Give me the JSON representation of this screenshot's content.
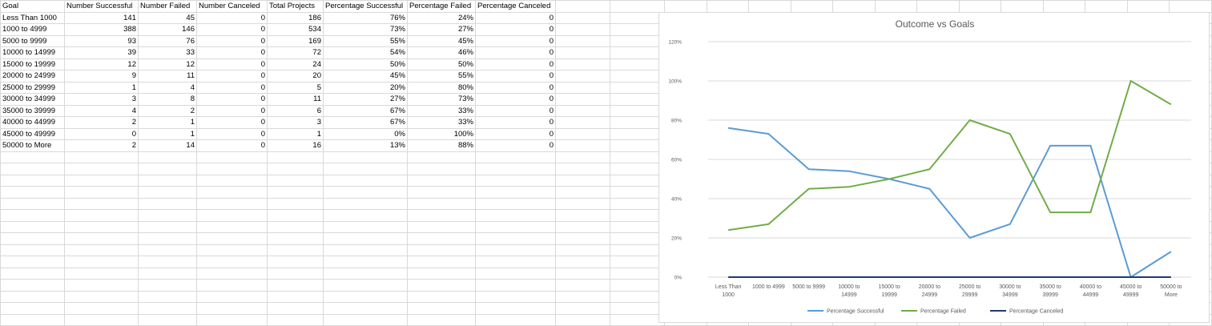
{
  "sheet": {
    "headers": [
      "Goal",
      "Number Successful",
      "Number Failed",
      "Number Canceled",
      "Total Projects",
      "Percentage Successful",
      "Percentage Failed",
      "Percentage Canceled"
    ],
    "rows": [
      [
        "Less Than 1000",
        "141",
        "45",
        "0",
        "186",
        "76%",
        "24%",
        "0"
      ],
      [
        "1000 to 4999",
        "388",
        "146",
        "0",
        "534",
        "73%",
        "27%",
        "0"
      ],
      [
        "5000 to 9999",
        "93",
        "76",
        "0",
        "169",
        "55%",
        "45%",
        "0"
      ],
      [
        "10000 to 14999",
        "39",
        "33",
        "0",
        "72",
        "54%",
        "46%",
        "0"
      ],
      [
        "15000 to 19999",
        "12",
        "12",
        "0",
        "24",
        "50%",
        "50%",
        "0"
      ],
      [
        "20000 to 24999",
        "9",
        "11",
        "0",
        "20",
        "45%",
        "55%",
        "0"
      ],
      [
        "25000 to 29999",
        "1",
        "4",
        "0",
        "5",
        "20%",
        "80%",
        "0"
      ],
      [
        "30000 to 34999",
        "3",
        "8",
        "0",
        "11",
        "27%",
        "73%",
        "0"
      ],
      [
        "35000 to 39999",
        "4",
        "2",
        "0",
        "6",
        "67%",
        "33%",
        "0"
      ],
      [
        "40000 to 44999",
        "2",
        "1",
        "0",
        "3",
        "67%",
        "33%",
        "0"
      ],
      [
        "45000 to 49999",
        "0",
        "1",
        "0",
        "1",
        "0%",
        "100%",
        "0"
      ],
      [
        "50000 to More",
        "2",
        "14",
        "0",
        "16",
        "13%",
        "88%",
        "0"
      ]
    ]
  },
  "chart_data": {
    "type": "line",
    "title": "Outcome vs Goals",
    "categories": [
      [
        "Less Than",
        "1000"
      ],
      [
        "1000 to 4999"
      ],
      [
        "5000 to 9999"
      ],
      [
        "10000 to",
        "14999"
      ],
      [
        "15000 to",
        "19999"
      ],
      [
        "20000 to",
        "24999"
      ],
      [
        "25000 to",
        "29999"
      ],
      [
        "30000 to",
        "34999"
      ],
      [
        "35000 to",
        "39999"
      ],
      [
        "40000 to",
        "44999"
      ],
      [
        "45000 to",
        "49999"
      ],
      [
        "50000 to",
        "More"
      ]
    ],
    "ylim": [
      0,
      1.2
    ],
    "yticks": [
      0,
      0.2,
      0.4,
      0.6,
      0.8,
      1.0,
      1.2
    ],
    "ytick_labels": [
      "0%",
      "20%",
      "40%",
      "60%",
      "80%",
      "100%",
      "120%"
    ],
    "grid": true,
    "legend_position": "bottom",
    "series": [
      {
        "name": "Percentage Successful",
        "color": "#5b9bd5",
        "values": [
          0.76,
          0.73,
          0.55,
          0.54,
          0.5,
          0.45,
          0.2,
          0.27,
          0.67,
          0.67,
          0.0,
          0.13
        ]
      },
      {
        "name": "Percentage Failed",
        "color": "#70ad47",
        "values": [
          0.24,
          0.27,
          0.45,
          0.46,
          0.5,
          0.55,
          0.8,
          0.73,
          0.33,
          0.33,
          1.0,
          0.88
        ]
      },
      {
        "name": "Percentage Canceled",
        "color": "#1f3a6e",
        "values": [
          0,
          0,
          0,
          0,
          0,
          0,
          0,
          0,
          0,
          0,
          0,
          0
        ]
      }
    ]
  }
}
